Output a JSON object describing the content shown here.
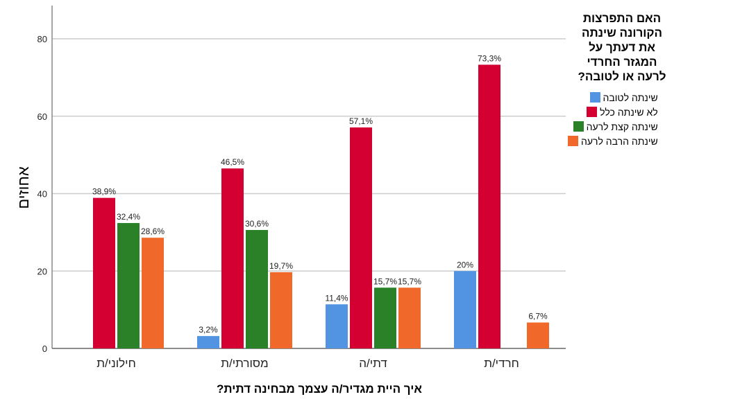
{
  "chart_data": {
    "type": "bar",
    "title": "האם התפרצות הקורונה שינתה את דעתך על המגזר החרדי לרעה או לטובה?",
    "xlabel": "איך היית מגדיר/ה עצמך מבחינה דתית?",
    "ylabel": "אחוזים",
    "ylim": [
      0,
      88
    ],
    "yticks": [
      0,
      20,
      40,
      60,
      80
    ],
    "grid": true,
    "legend_position": "right",
    "categories": [
      "חילוני/ת",
      "מסורתי/ת",
      "דתי/ה",
      "חרדי/ת"
    ],
    "series": [
      {
        "name": "שינתה לטובה",
        "color": "#5294E2",
        "values": [
          null,
          3.2,
          11.4,
          20
        ],
        "labels": [
          "",
          "3,2%",
          "11,4%",
          "20%"
        ]
      },
      {
        "name": "לא שינתה כלל",
        "color": "#D50032",
        "values": [
          38.9,
          46.5,
          57.1,
          73.3
        ],
        "labels": [
          "38,9%",
          "46,5%",
          "57,1%",
          "73,3%"
        ]
      },
      {
        "name": "שינתה קצת לרעה",
        "color": "#2A8128",
        "values": [
          32.4,
          30.6,
          15.7,
          null
        ],
        "labels": [
          "32,4%",
          "30,6%",
          "15,7%",
          ""
        ]
      },
      {
        "name": "שינתה הרבה לרעה",
        "color": "#F0692B",
        "values": [
          28.6,
          19.7,
          15.7,
          6.7
        ],
        "labels": [
          "28,6%",
          "19,7%",
          "15,7%",
          "6,7%"
        ]
      }
    ]
  },
  "legend": {
    "title_lines": [
      "האם התפרצות",
      "הקורונה שינתה",
      "את דעתך על",
      "המגזר החרדי",
      "לרעה או לטובה?"
    ],
    "items": [
      {
        "label": "שינתה לטובה",
        "color": "#5294E2"
      },
      {
        "label": "לא שינתה כלל",
        "color": "#D50032"
      },
      {
        "label": "שינתה קצת לרעה",
        "color": "#2A8128"
      },
      {
        "label": "שינתה הרבה לרעה",
        "color": "#F0692B"
      }
    ]
  },
  "axes": {
    "x_title": "איך היית מגדיר/ה עצמך מבחינה דתית?",
    "y_title": "אחוזים"
  }
}
